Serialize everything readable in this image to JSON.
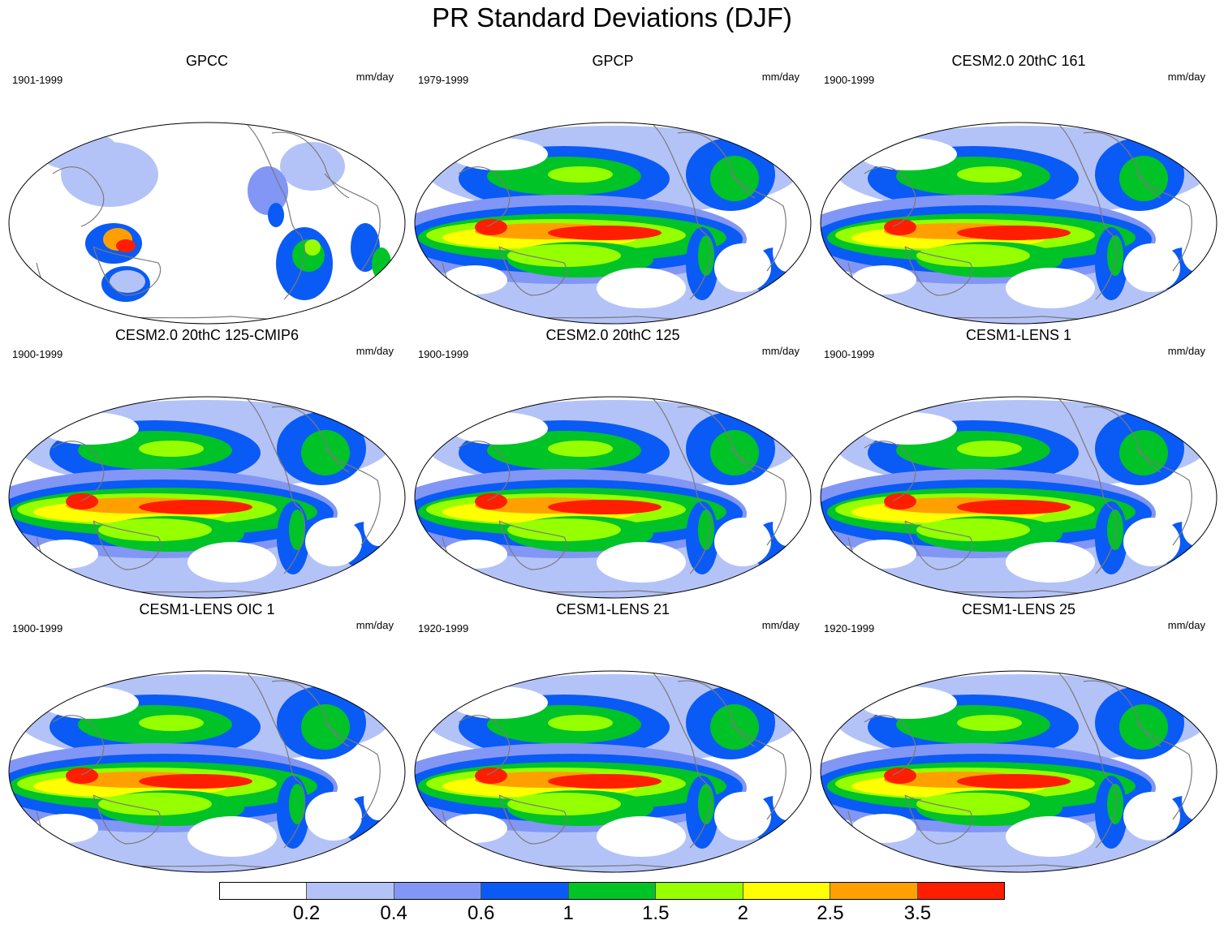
{
  "figure": {
    "title": "PR Standard Deviations (DJF)"
  },
  "panels": [
    {
      "title": "GPCC",
      "years": "1901-1999",
      "units": "mm/day",
      "intensity": 0.6,
      "land_only": true
    },
    {
      "title": "GPCP",
      "years": "1979-1999",
      "units": "mm/day",
      "intensity": 1.0,
      "land_only": false
    },
    {
      "title": "CESM2.0 20thC 161",
      "years": "1900-1999",
      "units": "mm/day",
      "intensity": 1.0,
      "land_only": false
    },
    {
      "title": "CESM2.0 20thC 125-CMIP6",
      "years": "1900-1999",
      "units": "mm/day",
      "intensity": 1.0,
      "land_only": false
    },
    {
      "title": "CESM2.0 20thC 125",
      "years": "1900-1999",
      "units": "mm/day",
      "intensity": 1.0,
      "land_only": false
    },
    {
      "title": "CESM1-LENS 1",
      "years": "1900-1999",
      "units": "mm/day",
      "intensity": 1.0,
      "land_only": false
    },
    {
      "title": "CESM1-LENS OIC 1",
      "years": "1900-1999",
      "units": "mm/day",
      "intensity": 1.0,
      "land_only": false
    },
    {
      "title": "CESM1-LENS 21",
      "years": "1920-1999",
      "units": "mm/day",
      "intensity": 1.0,
      "land_only": false
    },
    {
      "title": "CESM1-LENS 25",
      "years": "1920-1999",
      "units": "mm/day",
      "intensity": 1.0,
      "land_only": false
    }
  ],
  "colorbar": {
    "colors": [
      "#ffffff",
      "#b4c3f7",
      "#8296f5",
      "#0a5af5",
      "#00c328",
      "#96ff00",
      "#ffff00",
      "#ffa000",
      "#ff1e00"
    ],
    "labels": [
      "0.2",
      "0.4",
      "0.6",
      "1",
      "1.5",
      "2",
      "2.5",
      "3.5"
    ]
  },
  "map_style": {
    "coastline_color": "#7a7a7a",
    "border_color": "#000000"
  }
}
